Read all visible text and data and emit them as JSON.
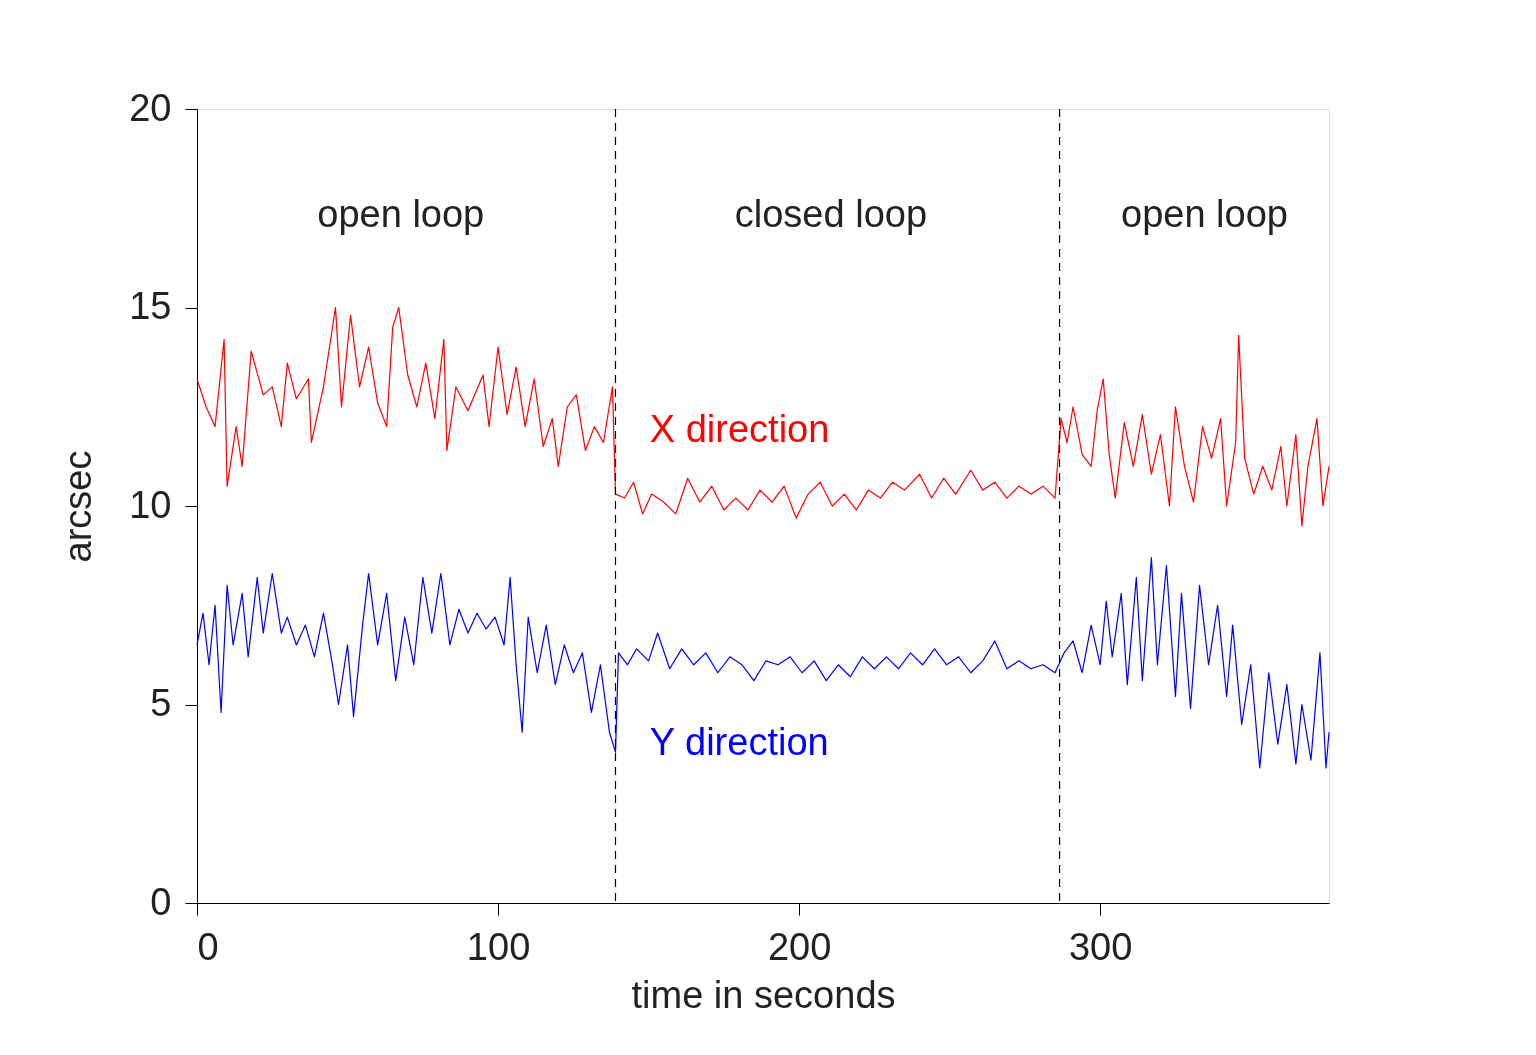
{
  "chart_data": {
    "type": "line",
    "xlabel": "time in seconds",
    "ylabel": "arcsec",
    "xlim": [
      0,
      376
    ],
    "ylim": [
      0,
      20
    ],
    "xticks": [
      0,
      100,
      200,
      300
    ],
    "yticks": [
      0,
      5,
      10,
      15,
      20
    ],
    "grid": false,
    "legend": false,
    "line_style": "solid",
    "marker": "none",
    "series": [
      {
        "name": "X direction",
        "color": "#ff0000",
        "x": [
          0,
          3,
          6,
          9,
          10,
          13,
          15,
          18,
          22,
          25,
          28,
          30,
          33,
          37,
          38,
          42,
          46,
          48,
          51,
          54,
          57,
          60,
          63,
          65,
          67,
          70,
          73,
          76,
          79,
          82,
          83,
          86,
          90,
          95,
          97,
          100,
          103,
          106,
          109,
          112,
          115,
          118,
          120,
          123,
          126,
          129,
          132,
          135,
          138,
          139,
          142,
          145,
          148,
          151,
          155,
          159,
          163,
          167,
          171,
          175,
          179,
          183,
          187,
          191,
          195,
          199,
          203,
          207,
          211,
          215,
          219,
          223,
          227,
          231,
          235,
          240,
          244,
          248,
          252,
          257,
          261,
          265,
          269,
          273,
          277,
          281,
          285,
          287,
          289,
          291,
          294,
          297,
          299,
          301,
          303,
          305,
          308,
          311,
          314,
          317,
          320,
          323,
          325,
          328,
          331,
          334,
          337,
          340,
          342,
          345,
          346,
          348,
          351,
          354,
          357,
          360,
          362,
          365,
          367,
          369,
          372,
          374,
          376
        ],
        "values": [
          13.2,
          12.5,
          12.0,
          14.2,
          10.5,
          12.0,
          11.0,
          13.9,
          12.8,
          13.0,
          12.0,
          13.6,
          12.7,
          13.2,
          11.6,
          13.0,
          15.0,
          12.5,
          14.8,
          13.0,
          14.0,
          12.6,
          12.0,
          14.5,
          15.0,
          13.3,
          12.5,
          13.6,
          12.2,
          14.2,
          11.4,
          13.0,
          12.4,
          13.3,
          12.0,
          14.0,
          12.3,
          13.5,
          12.0,
          13.2,
          11.5,
          12.2,
          11.0,
          12.5,
          12.8,
          11.4,
          12.0,
          11.6,
          13.0,
          10.3,
          10.2,
          10.6,
          9.8,
          10.3,
          10.1,
          9.8,
          10.7,
          10.1,
          10.5,
          9.9,
          10.2,
          9.9,
          10.4,
          10.1,
          10.5,
          9.7,
          10.3,
          10.6,
          10.0,
          10.3,
          9.9,
          10.4,
          10.2,
          10.6,
          10.4,
          10.8,
          10.2,
          10.7,
          10.3,
          10.9,
          10.4,
          10.6,
          10.2,
          10.5,
          10.3,
          10.5,
          10.2,
          12.2,
          11.6,
          12.5,
          11.3,
          11.0,
          12.4,
          13.2,
          11.3,
          10.2,
          12.1,
          11.0,
          12.3,
          10.8,
          11.8,
          10.0,
          12.5,
          11.0,
          10.1,
          12.0,
          11.2,
          12.2,
          10.0,
          11.6,
          14.3,
          11.2,
          10.3,
          11.0,
          10.4,
          11.5,
          10.0,
          11.8,
          9.5,
          11.0,
          12.2,
          10.0,
          11.0
        ]
      },
      {
        "name": "Y direction",
        "color": "#0000ff",
        "x": [
          0,
          2,
          4,
          6,
          8,
          10,
          12,
          15,
          17,
          20,
          22,
          25,
          28,
          30,
          33,
          36,
          39,
          42,
          45,
          47,
          50,
          52,
          55,
          57,
          60,
          63,
          66,
          69,
          72,
          75,
          78,
          81,
          84,
          87,
          90,
          93,
          96,
          99,
          102,
          104,
          106,
          108,
          110,
          113,
          116,
          119,
          122,
          125,
          128,
          131,
          134,
          137,
          139,
          140,
          143,
          146,
          150,
          153,
          157,
          161,
          165,
          169,
          173,
          177,
          181,
          185,
          189,
          193,
          197,
          201,
          205,
          209,
          213,
          217,
          221,
          225,
          229,
          233,
          237,
          241,
          245,
          249,
          253,
          257,
          261,
          265,
          269,
          273,
          277,
          281,
          285,
          288,
          291,
          294,
          297,
          300,
          302,
          304,
          307,
          309,
          312,
          314,
          317,
          319,
          322,
          325,
          327,
          330,
          333,
          336,
          339,
          342,
          344,
          347,
          350,
          353,
          356,
          359,
          362,
          365,
          367,
          370,
          373,
          375,
          376
        ],
        "values": [
          6.5,
          7.3,
          6.0,
          7.5,
          4.8,
          8.0,
          6.5,
          7.8,
          6.2,
          8.2,
          6.8,
          8.3,
          6.8,
          7.2,
          6.5,
          7.0,
          6.2,
          7.3,
          6.0,
          5.0,
          6.5,
          4.7,
          7.0,
          8.3,
          6.5,
          7.8,
          5.6,
          7.2,
          6.0,
          8.2,
          6.8,
          8.3,
          6.5,
          7.4,
          6.8,
          7.3,
          6.9,
          7.2,
          6.5,
          8.2,
          6.0,
          4.3,
          7.2,
          5.8,
          7.0,
          5.5,
          6.5,
          5.8,
          6.3,
          4.8,
          6.0,
          4.3,
          3.8,
          6.3,
          6.0,
          6.4,
          6.1,
          6.8,
          5.9,
          6.4,
          6.0,
          6.3,
          5.8,
          6.2,
          6.0,
          5.6,
          6.1,
          6.0,
          6.2,
          5.8,
          6.1,
          5.6,
          6.0,
          5.7,
          6.2,
          5.9,
          6.2,
          5.9,
          6.3,
          6.0,
          6.4,
          6.0,
          6.2,
          5.8,
          6.1,
          6.6,
          5.9,
          6.1,
          5.9,
          6.0,
          5.8,
          6.3,
          6.6,
          5.8,
          7.0,
          6.0,
          7.6,
          6.2,
          7.8,
          5.5,
          8.2,
          5.6,
          8.7,
          6.0,
          8.5,
          5.2,
          7.8,
          4.9,
          8.0,
          6.0,
          7.5,
          5.2,
          7.0,
          4.5,
          6.0,
          3.4,
          5.8,
          4.0,
          5.5,
          3.5,
          5.0,
          3.6,
          6.3,
          3.4,
          4.3
        ]
      }
    ],
    "ref_lines": [
      {
        "axis": "x",
        "value": 139,
        "color": "#000000",
        "line_style": "dashed"
      },
      {
        "axis": "x",
        "value": 286.5,
        "color": "#000000",
        "line_style": "dashed"
      }
    ],
    "annotations": [
      "open loop",
      "closed loop",
      "open loop"
    ]
  }
}
